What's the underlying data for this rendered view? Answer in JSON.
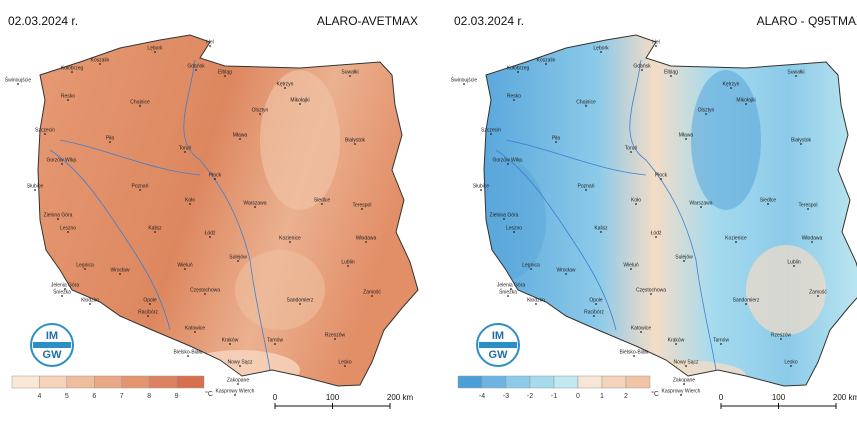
{
  "maps": [
    {
      "date": "02.03.2024 r.",
      "title": "ALARO-AVETMAX",
      "legend": {
        "ticks": [
          4,
          5,
          6,
          7,
          8,
          9
        ],
        "unit": "°C",
        "colors": [
          "#fbe7d6",
          "#f6d2b9",
          "#efbd9c",
          "#e9a886",
          "#e39570",
          "#dc8260",
          "#d6704e"
        ]
      }
    },
    {
      "date": "02.03.2024 r.",
      "title": "ALARO - Q95TMAX",
      "legend": {
        "ticks": [
          -4,
          -3,
          -2,
          -1,
          0,
          1,
          2
        ],
        "unit": "°C",
        "colors": [
          "#4d9fd8",
          "#6db4e2",
          "#8ccae9",
          "#a6dbee",
          "#bfe8f0",
          "#f7e6d4",
          "#f4d3ba",
          "#f0c4a4"
        ]
      }
    }
  ],
  "logo": {
    "top": "IM",
    "bottom": "GW"
  },
  "scale": {
    "labels": [
      "0",
      "100",
      "200 km"
    ]
  },
  "cities": [
    "Świnoujście",
    "Kołobrzeg",
    "Resko",
    "Koszalin",
    "Lębork",
    "Hel",
    "Gdańsk",
    "Elbląg",
    "Kętrzyn",
    "Suwałki",
    "Chojnice",
    "Mikołajki",
    "Olsztyn",
    "Szczecin",
    "Piła",
    "Toruń",
    "Mława",
    "Białystok",
    "Gorzów Wlkp.",
    "Poznań",
    "Płock",
    "Słubice",
    "Zielona Góra",
    "Koło",
    "Warszawa",
    "Siedlce",
    "Terespol",
    "Leszno",
    "Kalisz",
    "Łódź",
    "Kozienice",
    "Włodawa",
    "Legnica",
    "Wrocław",
    "Wieluń",
    "Sulejów",
    "Lublin",
    "Jelenia Góra",
    "Śnieżka",
    "Częstochowa",
    "Kłodzko",
    "Opole",
    "Sandomierz",
    "Zamość",
    "Katowice",
    "Racibórz",
    "Kraków",
    "Tarnów",
    "Rzeszów",
    "Bielsko-Biała",
    "Nowy Sącz",
    "Lesko",
    "Zakopane",
    "Kasprowy Wierch"
  ]
}
